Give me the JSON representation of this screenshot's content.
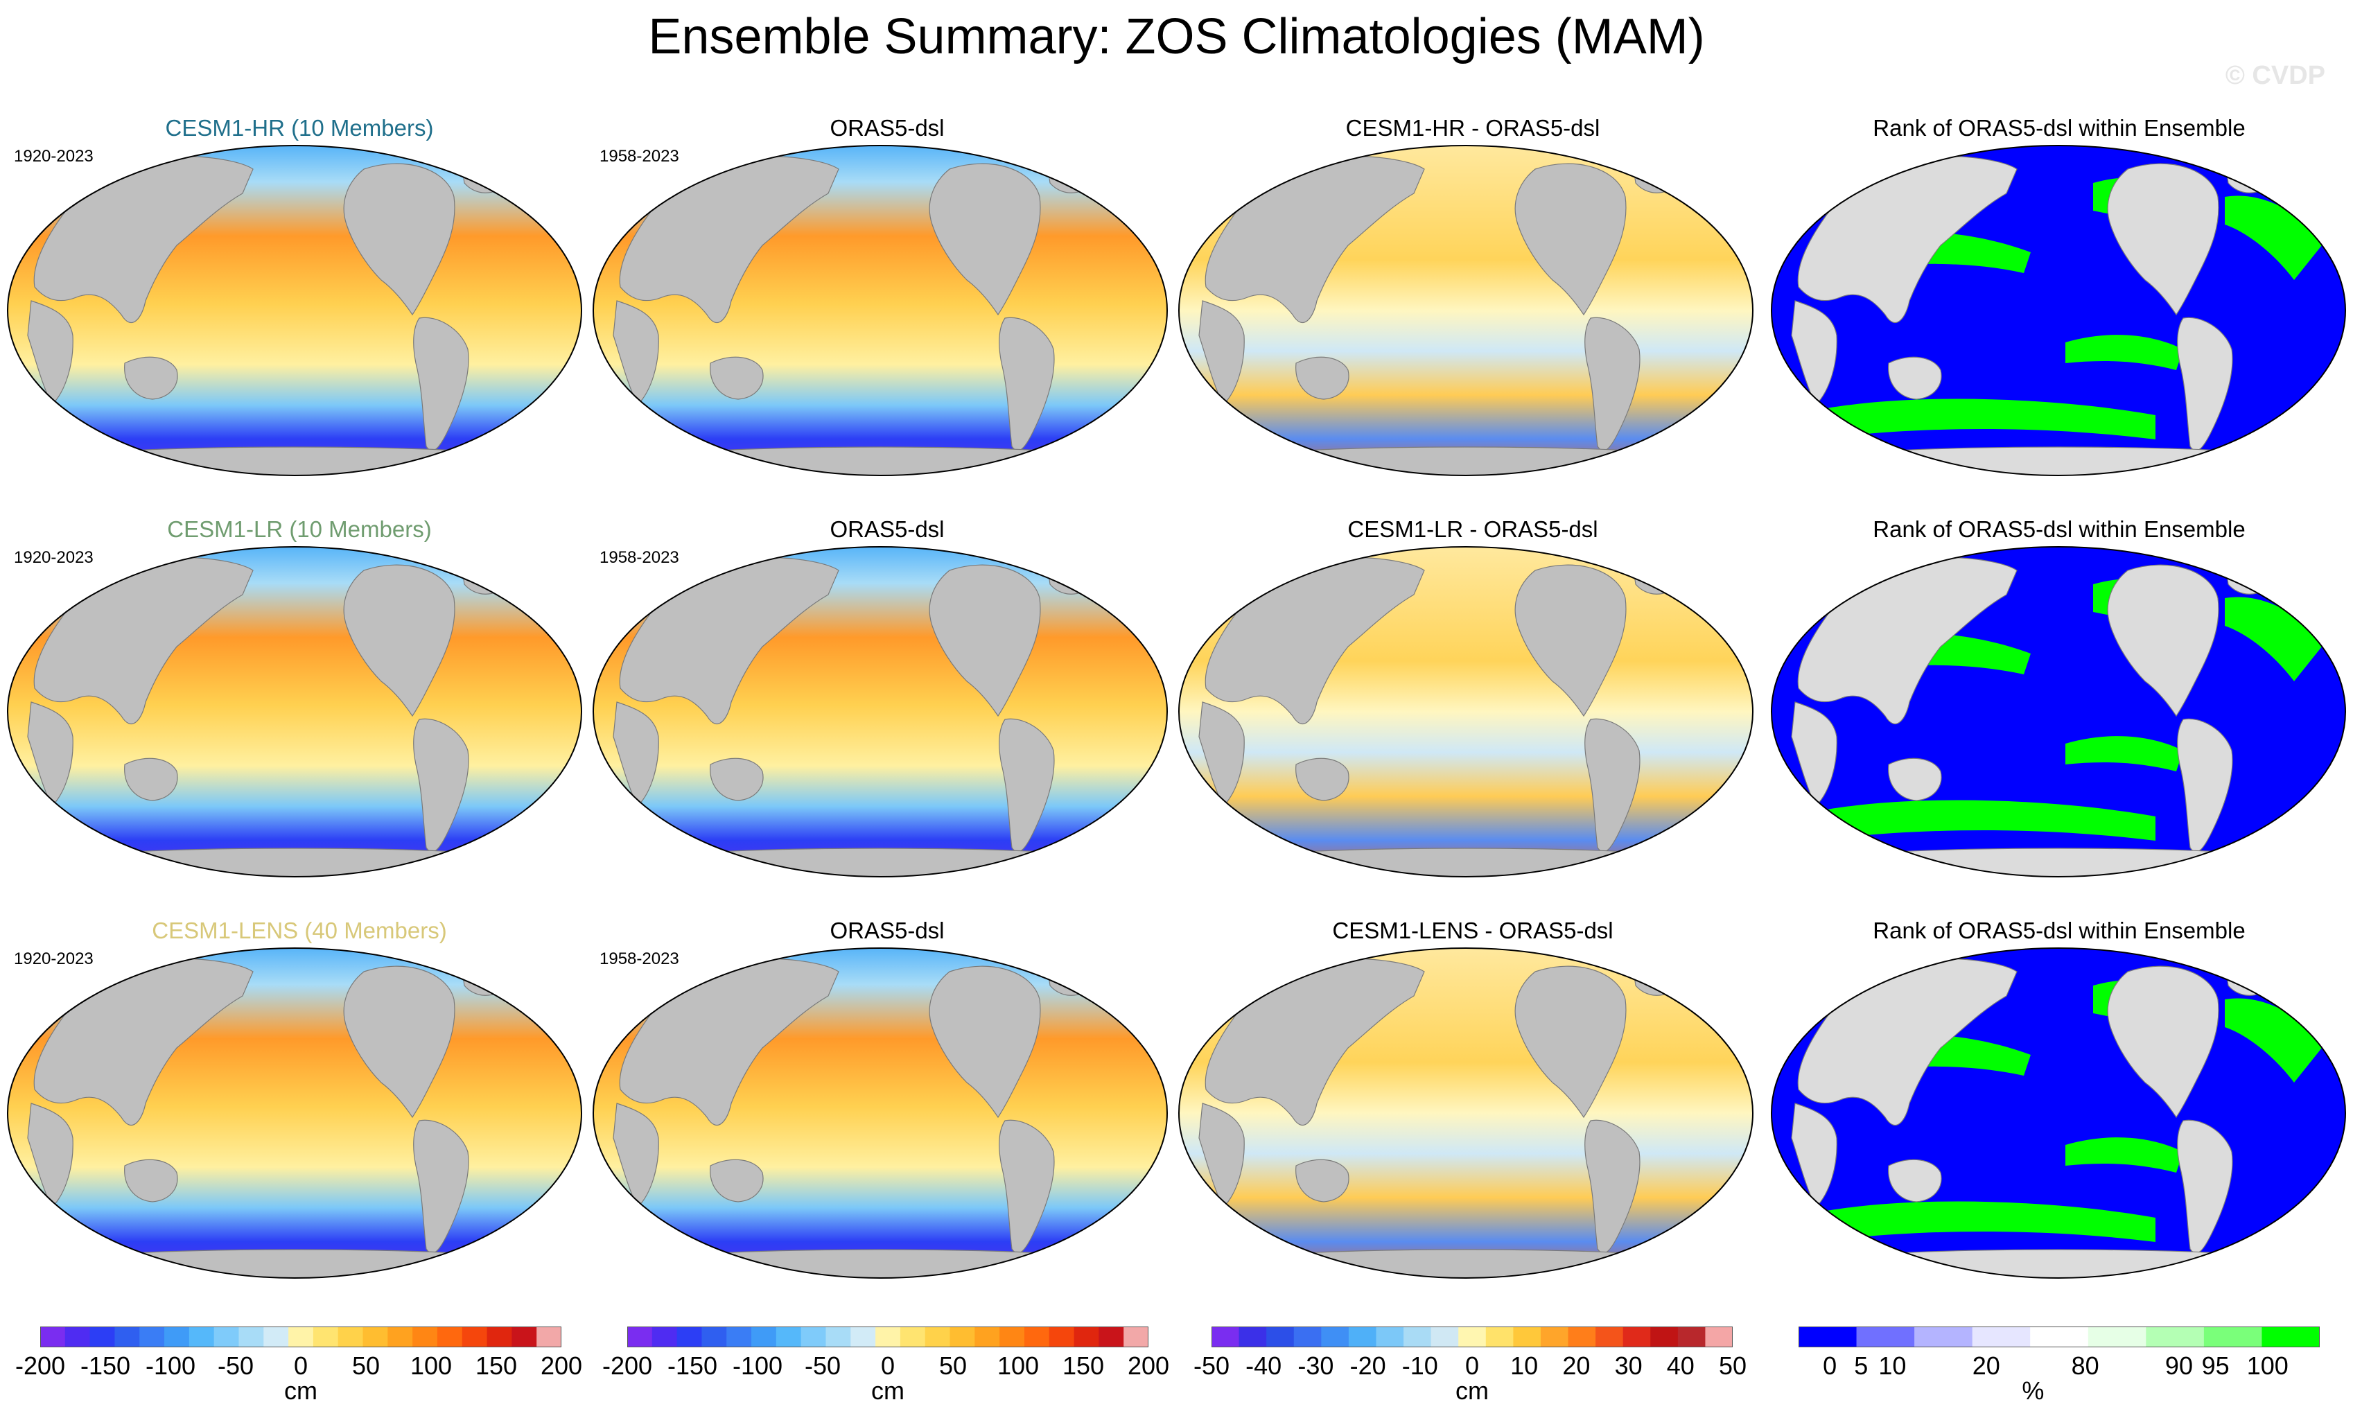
{
  "title": "Ensemble Summary: ZOS Climatologies (MAM)",
  "watermark": "© CVDP",
  "rows": [
    {
      "model": {
        "title": "CESM1-HR (10 Members)",
        "title_color": "#1f6f8b",
        "years": "1920-2023"
      },
      "obs": {
        "title": "ORAS5-dsl",
        "years": "1958-2023"
      },
      "diff": {
        "title": "CESM1-HR - ORAS5-dsl"
      },
      "rank": {
        "title": "Rank of ORAS5-dsl within Ensemble"
      }
    },
    {
      "model": {
        "title": "CESM1-LR (10 Members)",
        "title_color": "#6f9c6f",
        "years": "1920-2023"
      },
      "obs": {
        "title": "ORAS5-dsl",
        "years": "1958-2023"
      },
      "diff": {
        "title": "CESM1-LR - ORAS5-dsl"
      },
      "rank": {
        "title": "Rank of ORAS5-dsl within Ensemble"
      }
    },
    {
      "model": {
        "title": "CESM1-LENS (40 Members)",
        "title_color": "#d8c879",
        "years": "1920-2023"
      },
      "obs": {
        "title": "ORAS5-dsl",
        "years": "1958-2023"
      },
      "diff": {
        "title": "CESM1-LENS - ORAS5-dsl"
      },
      "rank": {
        "title": "Rank of ORAS5-dsl within Ensemble"
      }
    }
  ],
  "colorbars": [
    {
      "unit": "cm",
      "ticks": [
        "-200",
        "-150",
        "-100",
        "-50",
        "0",
        "50",
        "100",
        "150",
        "200"
      ],
      "colors": [
        "#7a2df0",
        "#4f2cf2",
        "#2c3ef5",
        "#2f5ff0",
        "#3a7df5",
        "#3f9bf7",
        "#55b8fa",
        "#7fcbfa",
        "#a8dcf7",
        "#d2ebf7",
        "#fff3a8",
        "#ffe470",
        "#ffd24a",
        "#ffbd30",
        "#ffa21f",
        "#ff8614",
        "#ff680e",
        "#f5460c",
        "#e0260e",
        "#c9141a",
        "#f2a8a8"
      ]
    },
    {
      "unit": "cm",
      "ticks": [
        "-200",
        "-150",
        "-100",
        "-50",
        "0",
        "50",
        "100",
        "150",
        "200"
      ],
      "colors": [
        "#7a2df0",
        "#4f2cf2",
        "#2c3ef5",
        "#2f5ff0",
        "#3a7df5",
        "#3f9bf7",
        "#55b8fa",
        "#7fcbfa",
        "#a8dcf7",
        "#d2ebf7",
        "#fff3a8",
        "#ffe470",
        "#ffd24a",
        "#ffbd30",
        "#ffa21f",
        "#ff8614",
        "#ff680e",
        "#f5460c",
        "#e0260e",
        "#c9141a",
        "#f2a8a8"
      ]
    },
    {
      "unit": "cm",
      "ticks": [
        "-50",
        "-40",
        "-30",
        "-20",
        "-10",
        "0",
        "10",
        "20",
        "30",
        "40",
        "50"
      ],
      "colors": [
        "#7a2df0",
        "#3b30e8",
        "#2c4fe8",
        "#3a6ff2",
        "#3f8ff5",
        "#4fb0f8",
        "#7cc8f8",
        "#a9dbf5",
        "#d0e8f4",
        "#fff6b0",
        "#ffe26a",
        "#ffc83a",
        "#ffa52a",
        "#ff7e1a",
        "#f4541a",
        "#e02a1a",
        "#c01414",
        "#b8282c",
        "#f4a6a6"
      ]
    },
    {
      "unit": "%",
      "ticks": [
        "0",
        "5",
        "10",
        "20",
        "80",
        "90",
        "95",
        "100"
      ],
      "colors": [
        "#0000ff",
        "#7070ff",
        "#b4b4ff",
        "#e6e6ff",
        "#ffffff",
        "#e6ffe6",
        "#b4ffb4",
        "#7aff7a",
        "#00ff00"
      ]
    }
  ],
  "chart_data": {
    "type": "heatmap",
    "title": "Ensemble Summary: ZOS Climatologies (MAM)",
    "variable": "ZOS",
    "season": "MAM",
    "layout": "3 rows x 4 columns of global maps",
    "columns": [
      "model ensemble mean",
      "observations (ORAS5-dsl)",
      "model minus observations",
      "rank of ORAS5-dsl within ensemble"
    ],
    "model_colorscale_ticks": [
      -200,
      -150,
      -100,
      -50,
      0,
      50,
      100,
      150,
      200
    ],
    "diff_colorscale_ticks": [
      -50,
      -40,
      -30,
      -20,
      -10,
      0,
      10,
      20,
      30,
      40,
      50
    ],
    "rank_colorscale_ticks": [
      0,
      5,
      10,
      20,
      80,
      90,
      95,
      100
    ],
    "units": {
      "maps": "cm",
      "rank": "%"
    }
  }
}
